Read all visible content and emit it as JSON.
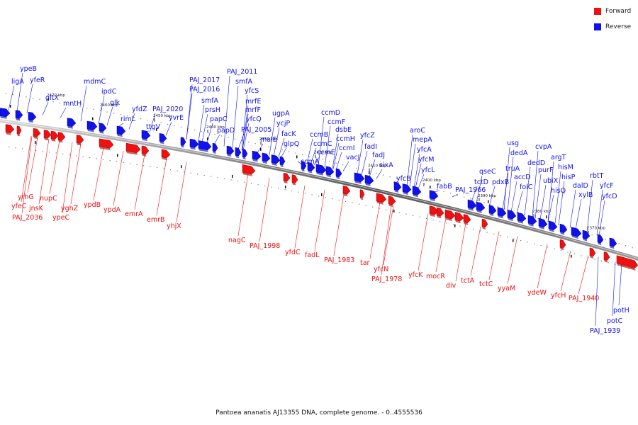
{
  "legend": {
    "forward_label": "Forward",
    "reverse_label": "Reverse",
    "forward_color": "#ee1111",
    "reverse_color": "#1111ee"
  },
  "caption": "Pantoea ananatis AJ13355 DNA, complete genome. - 0..4555536",
  "kbp_ticks": [
    "2470 kbp",
    "2460 kbp",
    "2450 kbp",
    "2440 kbp",
    "2430 kbp",
    "2420 kbp",
    "2410 kbp",
    "2400 kbp",
    "2390 kbp",
    "2380 kbp",
    "2370 kbp"
  ],
  "genes_reverse": [
    "ligA",
    "ypeB",
    "yfeR",
    "gltX",
    "mntH",
    "mdmC",
    "ipdC",
    "glk",
    "rimL",
    "yfdZ",
    "ttgV",
    "PAJ_2020",
    "yvrE",
    "PAJ_2017",
    "PAJ_2016",
    "smfA",
    "prsH",
    "papC",
    "papD",
    "PAJ_2011",
    "smfA",
    "yfcS",
    "mrfE",
    "mrfF",
    "yfcQ",
    "PAJ_2005",
    "malE",
    "ugpA",
    "ycjP",
    "facK",
    "glpQ",
    "ccmD",
    "ccmF",
    "ccmB",
    "ccmC",
    "ccmE",
    "ccmA",
    "dsbE",
    "ccmH",
    "ccmI",
    "vacJ",
    "yfcZ",
    "fadI",
    "fadJ",
    "sixA",
    "aroC",
    "mepA",
    "yfcA",
    "yfcM",
    "yfcL",
    "yfcB",
    "fabB",
    "PAJ_1966",
    "qseC",
    "tctD",
    "usg",
    "truA",
    "dedA",
    "pdxB",
    "accD",
    "folC",
    "dedD",
    "cvpA",
    "purF",
    "argT",
    "ubiX",
    "hisM",
    "hisP",
    "hisQ",
    "dalD",
    "rbtT",
    "xylB",
    "yfcF",
    "yfcD",
    "potH",
    "potC",
    "PAJ_1939"
  ],
  "genes_forward": [
    "yrhG",
    "yfeC",
    "jnsK",
    "PAJ_2036",
    "nupC",
    "yghZ",
    "ypeC",
    "ypdB",
    "ypdA",
    "emrA",
    "emrB",
    "yhjX",
    "nagC",
    "PAJ_1998",
    "yfdC",
    "fadL",
    "PAJ_1983",
    "tar",
    "yfcN",
    "PAJ_1978",
    "yfcK",
    "mocR",
    "div",
    "tctA",
    "tctC",
    "yyaM",
    "ydeW",
    "yfcH",
    "PAJ_1940"
  ]
}
